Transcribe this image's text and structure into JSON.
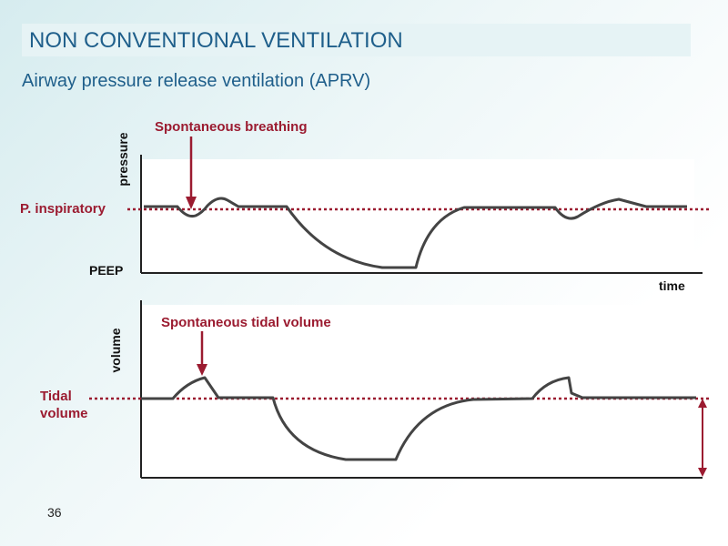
{
  "header": {
    "title": "NON CONVENTIONAL VENTILATION",
    "subtitle": "Airway pressure release ventilation (APRV)"
  },
  "pressure_panel": {
    "annotation": "Spontaneous breathing",
    "axis_label": "pressure",
    "level_label": "P. inspiratory",
    "baseline_label": "PEEP",
    "time_label": "time"
  },
  "volume_panel": {
    "annotation": "Spontaneous tidal volume",
    "axis_label": "volume",
    "level_label": "Tidal volume"
  },
  "footer": {
    "page_number": "36"
  }
}
